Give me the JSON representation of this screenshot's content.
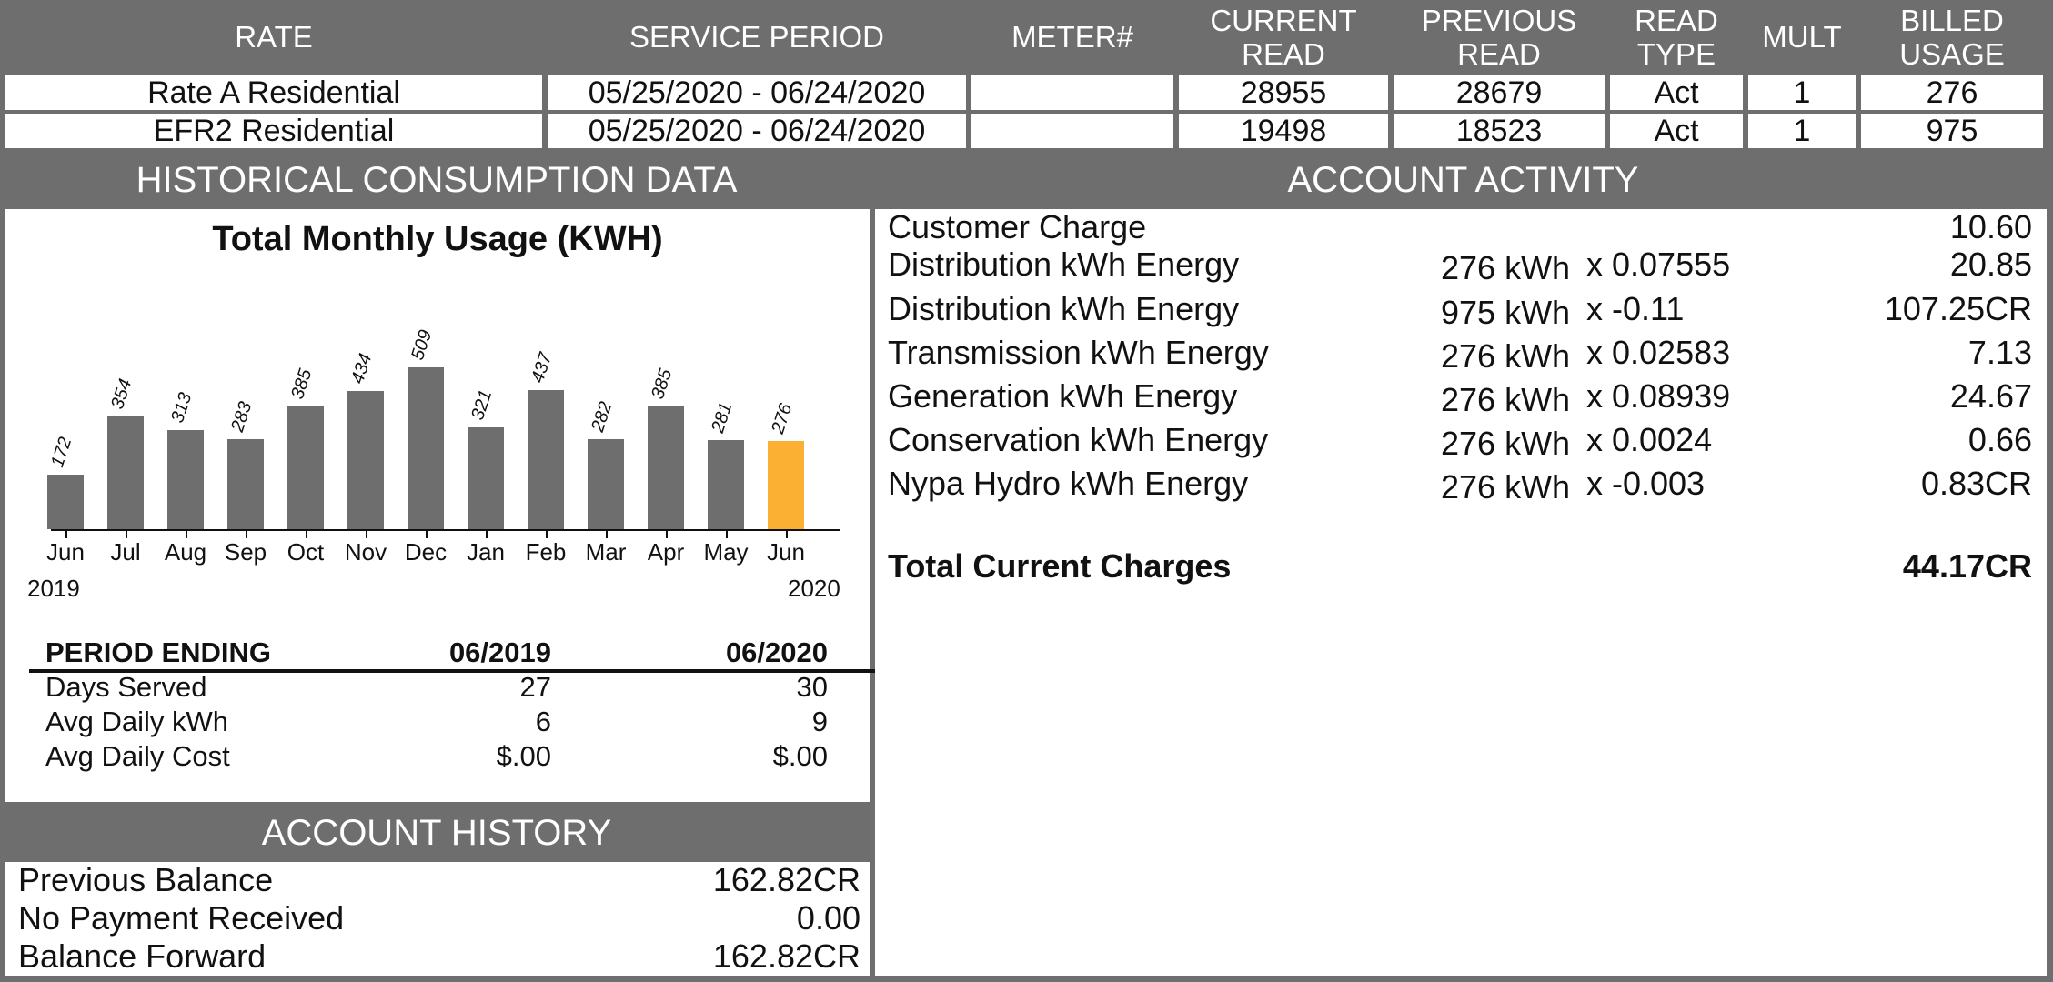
{
  "colors": {
    "frame": "#6e6e6e",
    "bar": "#6e6e6e",
    "bar_highlight": "#fbb034"
  },
  "rate_table": {
    "headers": [
      "RATE",
      "SERVICE PERIOD",
      "METER#",
      "CURRENT READ",
      "PREVIOUS READ",
      "READ TYPE",
      "MULT",
      "BILLED USAGE"
    ],
    "header_lines": [
      [
        "RATE"
      ],
      [
        "SERVICE PERIOD"
      ],
      [
        "METER#"
      ],
      [
        "CURRENT",
        "READ"
      ],
      [
        "PREVIOUS",
        "READ"
      ],
      [
        "READ",
        "TYPE"
      ],
      [
        "MULT"
      ],
      [
        "BILLED",
        "USAGE"
      ]
    ],
    "rows": [
      [
        "Rate A Residential",
        "05/25/2020 - 06/24/2020",
        "",
        "28955",
        "28679",
        "Act",
        "1",
        "276"
      ],
      [
        "EFR2 Residential",
        "05/25/2020 - 06/24/2020",
        "",
        "19498",
        "18523",
        "Act",
        "1",
        "975"
      ]
    ]
  },
  "historical": {
    "section_title": "HISTORICAL CONSUMPTION DATA",
    "period_table": {
      "header": [
        "PERIOD ENDING",
        "06/2019",
        "06/2020"
      ],
      "rows": [
        [
          "Days Served",
          "27",
          "30"
        ],
        [
          "Avg Daily kWh",
          "6",
          "9"
        ],
        [
          "Avg Daily Cost",
          "$.00",
          "$.00"
        ]
      ]
    }
  },
  "chart_data": {
    "type": "bar",
    "title": "Total Monthly Usage (KWH)",
    "categories": [
      "Jun",
      "Jul",
      "Aug",
      "Sep",
      "Oct",
      "Nov",
      "Dec",
      "Jan",
      "Feb",
      "Mar",
      "Apr",
      "May",
      "Jun"
    ],
    "values": [
      172,
      354,
      313,
      283,
      385,
      434,
      509,
      321,
      437,
      282,
      385,
      281,
      276
    ],
    "year_labels": [
      "2019",
      "2020"
    ],
    "highlight_index": 12,
    "ylim": [
      0,
      509
    ],
    "grid": false
  },
  "account_activity": {
    "section_title": "ACCOUNT ACTIVITY",
    "rows": [
      {
        "label": "Customer Charge",
        "qty": "",
        "rate": "",
        "amount": "10.60"
      },
      {
        "label": "Distribution kWh Energy",
        "qty": "276 kWh",
        "rate": "x 0.07555",
        "amount": "20.85"
      },
      {
        "label": "Distribution kWh Energy",
        "qty": "975 kWh",
        "rate": "x -0.11",
        "amount": "107.25CR"
      },
      {
        "label": "Transmission kWh Energy",
        "qty": "276 kWh",
        "rate": "x 0.02583",
        "amount": "7.13"
      },
      {
        "label": "Generation kWh Energy",
        "qty": "276 kWh",
        "rate": "x 0.08939",
        "amount": "24.67"
      },
      {
        "label": "Conservation kWh Energy",
        "qty": "276 kWh",
        "rate": "x 0.0024",
        "amount": "0.66"
      },
      {
        "label": "Nypa Hydro kWh Energy",
        "qty": "276 kWh",
        "rate": "x -0.003",
        "amount": "0.83CR"
      }
    ],
    "total_label": "Total Current Charges",
    "total_amount": "44.17CR"
  },
  "account_history": {
    "section_title": "ACCOUNT HISTORY",
    "rows": [
      {
        "label": "Previous Balance",
        "amount": "162.82CR"
      },
      {
        "label": "No Payment Received",
        "amount": "0.00"
      },
      {
        "label": "Balance Forward",
        "amount": "162.82CR"
      }
    ]
  }
}
